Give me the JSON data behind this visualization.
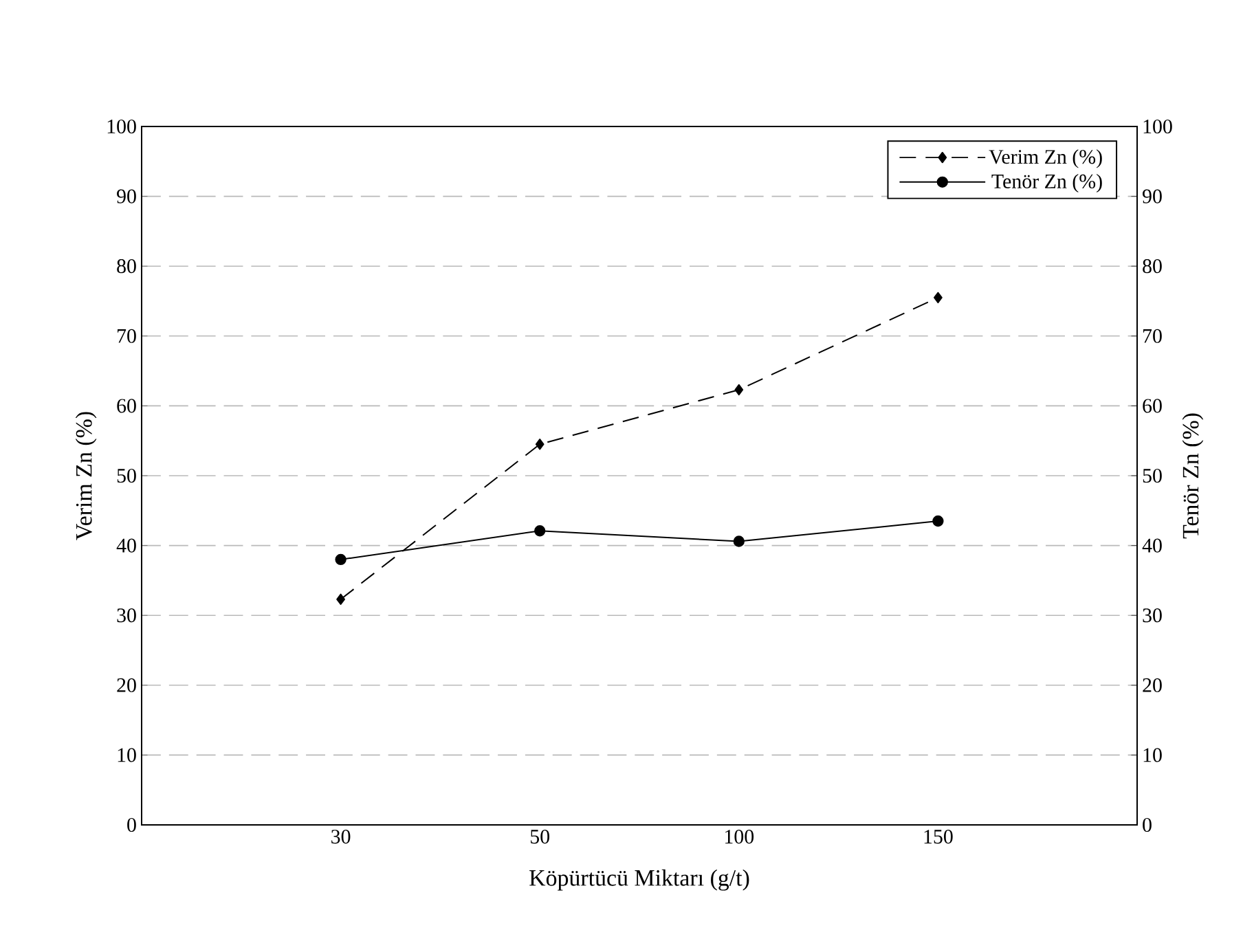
{
  "chart_data": {
    "type": "line",
    "xlabel": "Köpürtücü Miktarı (g/t)",
    "ylabel": "Verim Zn (%)",
    "y2label": "Tenör Zn (%)",
    "categories": [
      "30",
      "50",
      "100",
      "150"
    ],
    "series": [
      {
        "name": "Verim Zn (%)",
        "color": "#000000",
        "values": [
          32.3,
          54.5,
          62.3,
          75.5
        ],
        "marker": "diamond",
        "line_style": "dashed"
      },
      {
        "name": "Tenör Zn (%)",
        "color": "#000000",
        "values": [
          38.0,
          42.1,
          40.6,
          43.5
        ],
        "marker": "circle",
        "line_style": "solid",
        "axis": "y2"
      }
    ],
    "ylim": [
      0,
      100
    ],
    "yticks": [
      0,
      10,
      20,
      30,
      40,
      50,
      60,
      70,
      80,
      90,
      100
    ],
    "y2lim": [
      0,
      100
    ],
    "y2ticks": [
      0,
      10,
      20,
      30,
      40,
      50,
      60,
      70,
      80,
      90,
      100
    ],
    "grid": "y",
    "legend": "top right"
  }
}
